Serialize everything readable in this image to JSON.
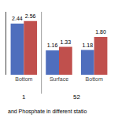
{
  "chart_data": {
    "type": "bar",
    "subtitle": "and Phosphate in different statio",
    "categories": [
      "Bottom",
      "Surface",
      "Bottom"
    ],
    "series": [
      {
        "color": "#4F6EBD",
        "values": [
          2.44,
          1.16,
          1.18
        ],
        "value_labels": [
          "2.44",
          "1.16",
          "1.18"
        ]
      },
      {
        "color": "#C0504D",
        "values": [
          2.56,
          1.33,
          1.8
        ],
        "value_labels": [
          "2.56",
          "1.33",
          "1.80"
        ]
      }
    ],
    "annotations": [
      "1",
      "52"
    ],
    "ylim": [
      0,
      3.0
    ],
    "grid": false,
    "data_labels": true,
    "tick_labels": "x"
  }
}
